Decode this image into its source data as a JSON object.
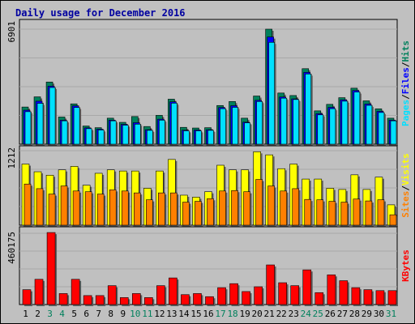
{
  "title": "Daily usage for December 2016",
  "colors": {
    "hits": "#00805c",
    "files": "#0000ff",
    "pages": "#00e0ff",
    "visits": "#ffff00",
    "sites": "#ff8000",
    "kbytes": "#ff0000",
    "weekend_label": "#00805c",
    "weekday_label": "#000000",
    "panel_bg": "#c0c0c0"
  },
  "chart_data": [
    {
      "type": "bar",
      "name": "hits-files-pages",
      "ymax_label": "6901",
      "ymax": 6901,
      "legend": [
        "Pages",
        "Files",
        "Hits"
      ],
      "series": [
        {
          "name": "Hits",
          "values": [
            2230,
            2840,
            3730,
            1630,
            2420,
            1090,
            990,
            1560,
            1310,
            1660,
            1060,
            1730,
            2700,
            1010,
            970,
            990,
            2320,
            2560,
            1560,
            2890,
            6901,
            3070,
            2920,
            4530,
            2000,
            2390,
            2790,
            3360,
            2600,
            2120,
            1560
          ]
        },
        {
          "name": "Files",
          "values": [
            2040,
            2580,
            3480,
            1440,
            2300,
            980,
            900,
            1440,
            1190,
            1290,
            870,
            1500,
            2540,
            840,
            850,
            870,
            2200,
            2310,
            1320,
            2630,
            6430,
            2830,
            2720,
            4310,
            1830,
            2210,
            2660,
            3220,
            2410,
            1970,
            1440
          ]
        },
        {
          "name": "Pages",
          "values": [
            1950,
            2450,
            3400,
            1400,
            2200,
            930,
            850,
            1400,
            1140,
            1200,
            830,
            1440,
            2460,
            800,
            800,
            830,
            2130,
            2210,
            1280,
            2560,
            6110,
            2760,
            2680,
            4210,
            1760,
            2130,
            2580,
            3130,
            2330,
            1900,
            1400
          ]
        }
      ]
    },
    {
      "type": "bar",
      "name": "visits-sites",
      "ymax_label": "1212",
      "ymax": 1212,
      "legend": [
        "Sites",
        "Visits"
      ],
      "series": [
        {
          "name": "Visits",
          "values": [
            994,
            869,
            813,
            900,
            956,
            650,
            844,
            900,
            881,
            881,
            600,
            881,
            1069,
            488,
            456,
            544,
            975,
            900,
            900,
            1194,
            1144,
            919,
            994,
            750,
            750,
            600,
            581,
            819,
            581,
            781,
            331
          ]
        },
        {
          "name": "Sites",
          "values": [
            669,
            594,
            506,
            638,
            556,
            544,
            506,
            575,
            556,
            525,
            413,
            525,
            525,
            375,
            388,
            431,
            556,
            563,
            544,
            744,
            638,
            556,
            594,
            419,
            413,
            388,
            375,
            425,
            394,
            413,
            169
          ]
        }
      ]
    },
    {
      "type": "bar",
      "name": "kbytes",
      "ymax_label": "460175",
      "ymax": 460175,
      "legend": [
        "KBytes"
      ],
      "series": [
        {
          "name": "KBytes",
          "values": [
            96000,
            163000,
            465000,
            71000,
            163000,
            58000,
            58000,
            122000,
            45000,
            71000,
            45000,
            122000,
            172000,
            64000,
            71000,
            51000,
            109000,
            135000,
            84000,
            115000,
            256000,
            141000,
            122000,
            224000,
            77000,
            192000,
            154000,
            109000,
            96000,
            90000,
            90000
          ]
        }
      ]
    },
    {
      "type": "axis",
      "name": "days",
      "categories": [
        "1",
        "2",
        "3",
        "4",
        "5",
        "6",
        "7",
        "8",
        "9",
        "10",
        "11",
        "12",
        "13",
        "14",
        "15",
        "16",
        "17",
        "18",
        "19",
        "20",
        "21",
        "22",
        "23",
        "24",
        "25",
        "26",
        "27",
        "28",
        "29",
        "30",
        "31"
      ],
      "weekend": [
        3,
        4,
        10,
        11,
        17,
        18,
        24,
        25,
        31
      ]
    }
  ]
}
